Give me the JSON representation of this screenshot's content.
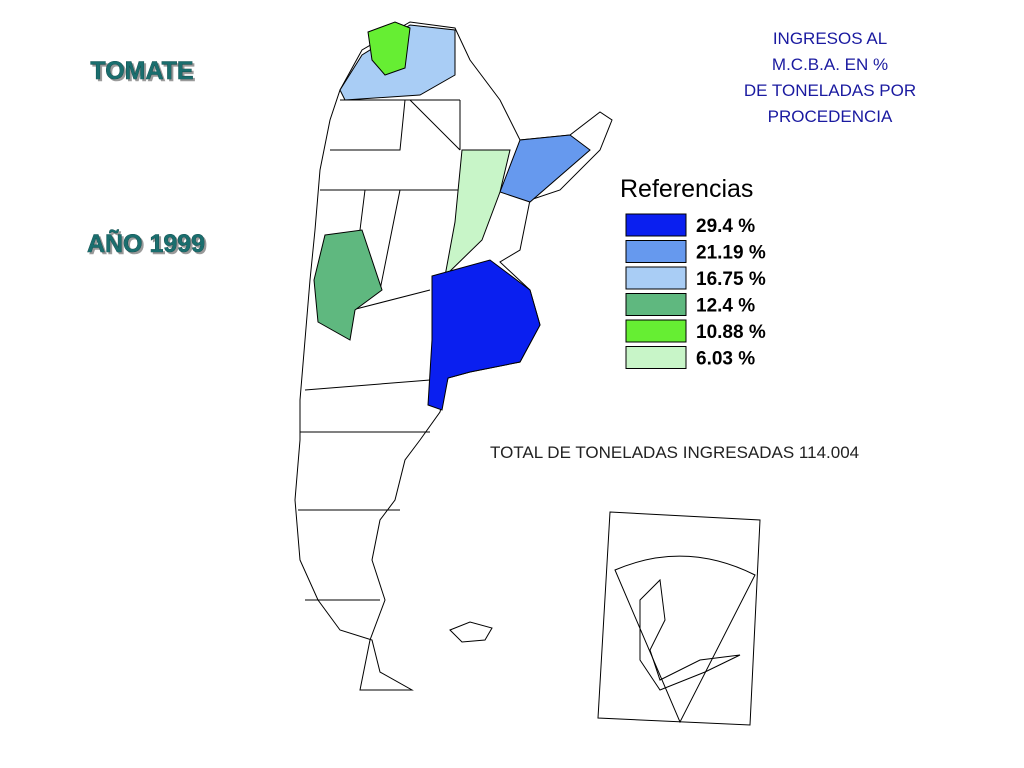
{
  "header": {
    "product": "TOMATE",
    "year": "AÑO 1999",
    "title_lines": [
      "INGRESOS AL",
      "M.C.B.A. EN %",
      "DE TONELADAS POR",
      "PROCEDENCIA"
    ]
  },
  "legend": {
    "title": "Referencias",
    "items": [
      {
        "value": 29.4,
        "label": "29.4 %",
        "color": "#0a1ff0"
      },
      {
        "value": 21.19,
        "label": "21.19 %",
        "color": "#6699ee"
      },
      {
        "value": 16.75,
        "label": "16.75 %",
        "color": "#a9cdf5"
      },
      {
        "value": 12.4,
        "label": "12.4 %",
        "color": "#5fb87f"
      },
      {
        "value": 10.88,
        "label": "10.88 %",
        "color": "#66ee33"
      },
      {
        "value": 6.03,
        "label": "6.03 %",
        "color": "#c8f5c8"
      }
    ]
  },
  "total": "TOTAL DE TONELADAS INGRESADAS 114.004"
}
